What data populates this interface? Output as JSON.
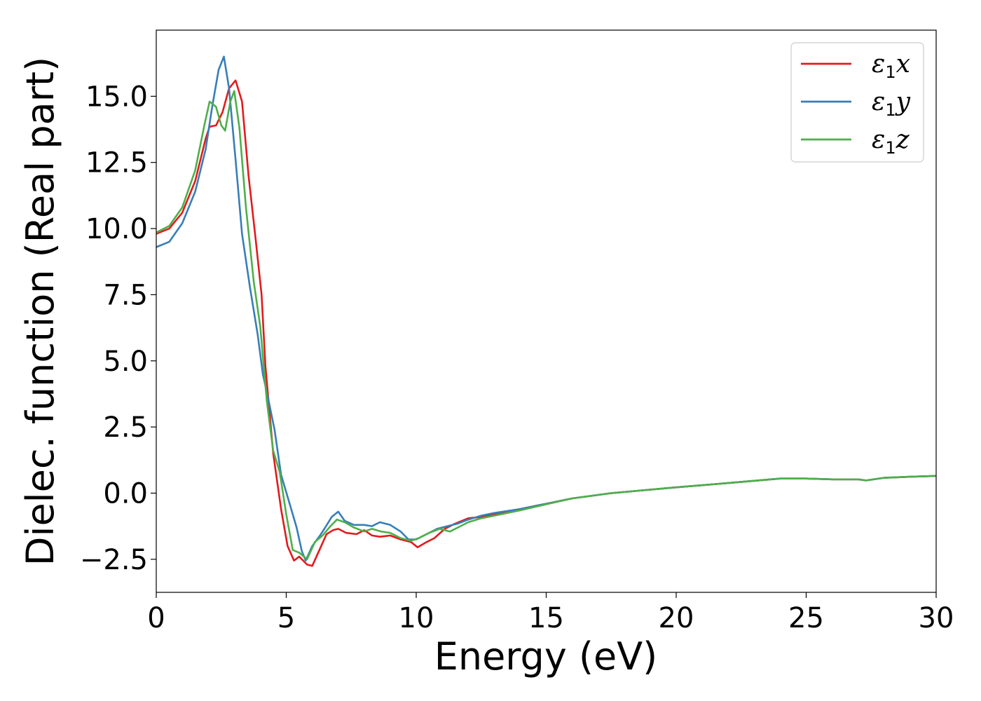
{
  "chart_data": {
    "type": "line",
    "title": "",
    "xlabel": "Energy (eV)",
    "ylabel": "Dielec. function (Real part)",
    "xlim": [
      0,
      30
    ],
    "ylim": [
      -3.75,
      17.5
    ],
    "xticks": [
      0,
      5,
      10,
      15,
      20,
      25,
      30
    ],
    "xtick_labels": [
      "0",
      "5",
      "10",
      "15",
      "20",
      "25",
      "30"
    ],
    "yticks": [
      -2.5,
      0.0,
      2.5,
      5.0,
      7.5,
      10.0,
      12.5,
      15.0
    ],
    "ytick_labels": [
      "−2.5",
      "0.0",
      "2.5",
      "5.0",
      "7.5",
      "10.0",
      "12.5",
      "15.0"
    ],
    "grid": false,
    "legend_position": "top-right",
    "series": [
      {
        "name": "x",
        "legend_symbol": "ε",
        "legend_subscript": "1",
        "color": "#e41a1c",
        "points": [
          [
            0,
            9.8
          ],
          [
            0.5,
            10.0
          ],
          [
            1.0,
            10.6
          ],
          [
            1.5,
            11.8
          ],
          [
            1.9,
            13.4
          ],
          [
            2.05,
            13.85
          ],
          [
            2.3,
            13.9
          ],
          [
            2.55,
            14.4
          ],
          [
            2.8,
            15.3
          ],
          [
            3.05,
            15.6
          ],
          [
            3.3,
            14.8
          ],
          [
            3.55,
            12.0
          ],
          [
            3.8,
            9.8
          ],
          [
            4.05,
            7.5
          ],
          [
            4.2,
            4.8
          ],
          [
            4.5,
            1.5
          ],
          [
            4.8,
            -0.6
          ],
          [
            5.05,
            -2.0
          ],
          [
            5.3,
            -2.55
          ],
          [
            5.5,
            -2.4
          ],
          [
            5.8,
            -2.7
          ],
          [
            6.0,
            -2.75
          ],
          [
            6.3,
            -2.1
          ],
          [
            6.55,
            -1.55
          ],
          [
            6.8,
            -1.4
          ],
          [
            7.0,
            -1.35
          ],
          [
            7.3,
            -1.5
          ],
          [
            7.7,
            -1.55
          ],
          [
            8.0,
            -1.4
          ],
          [
            8.3,
            -1.6
          ],
          [
            8.6,
            -1.65
          ],
          [
            9.0,
            -1.6
          ],
          [
            9.4,
            -1.75
          ],
          [
            9.8,
            -1.85
          ],
          [
            10.05,
            -2.05
          ],
          [
            10.4,
            -1.85
          ],
          [
            10.7,
            -1.7
          ],
          [
            11.1,
            -1.35
          ],
          [
            11.5,
            -1.15
          ],
          [
            12.0,
            -0.95
          ],
          [
            12.5,
            -0.9
          ],
          [
            13.0,
            -0.8
          ],
          [
            14.0,
            -0.6
          ],
          [
            15.0,
            -0.4
          ],
          [
            16.0,
            -0.2
          ],
          [
            17.5,
            0.0
          ],
          [
            20.0,
            0.22
          ],
          [
            22.0,
            0.38
          ],
          [
            24.0,
            0.55
          ],
          [
            25.0,
            0.55
          ],
          [
            26.0,
            0.52
          ],
          [
            27.0,
            0.52
          ],
          [
            27.3,
            0.48
          ],
          [
            28.0,
            0.58
          ],
          [
            29.0,
            0.62
          ],
          [
            30.0,
            0.65
          ]
        ]
      },
      {
        "name": "y",
        "legend_symbol": "ε",
        "legend_subscript": "1",
        "color": "#377eb8",
        "points": [
          [
            0,
            9.3
          ],
          [
            0.5,
            9.5
          ],
          [
            1.0,
            10.2
          ],
          [
            1.5,
            11.4
          ],
          [
            1.9,
            13.0
          ],
          [
            2.15,
            14.6
          ],
          [
            2.4,
            16.0
          ],
          [
            2.6,
            16.5
          ],
          [
            2.8,
            15.3
          ],
          [
            3.05,
            12.6
          ],
          [
            3.3,
            9.8
          ],
          [
            3.6,
            7.8
          ],
          [
            3.9,
            6.0
          ],
          [
            4.1,
            4.5
          ],
          [
            4.3,
            3.6
          ],
          [
            4.55,
            2.4
          ],
          [
            4.8,
            0.7
          ],
          [
            5.1,
            -0.3
          ],
          [
            5.4,
            -1.3
          ],
          [
            5.6,
            -2.2
          ],
          [
            5.75,
            -2.55
          ],
          [
            6.0,
            -2.0
          ],
          [
            6.3,
            -1.6
          ],
          [
            6.5,
            -1.3
          ],
          [
            6.75,
            -0.9
          ],
          [
            7.0,
            -0.7
          ],
          [
            7.25,
            -1.05
          ],
          [
            7.6,
            -1.2
          ],
          [
            8.0,
            -1.2
          ],
          [
            8.3,
            -1.25
          ],
          [
            8.6,
            -1.1
          ],
          [
            9.0,
            -1.2
          ],
          [
            9.4,
            -1.45
          ],
          [
            9.7,
            -1.75
          ],
          [
            10.0,
            -1.75
          ],
          [
            10.4,
            -1.55
          ],
          [
            10.8,
            -1.35
          ],
          [
            11.2,
            -1.25
          ],
          [
            11.6,
            -1.15
          ],
          [
            12.0,
            -1.0
          ],
          [
            12.5,
            -0.85
          ],
          [
            13.0,
            -0.75
          ],
          [
            14.0,
            -0.6
          ],
          [
            15.0,
            -0.4
          ],
          [
            16.0,
            -0.2
          ],
          [
            17.5,
            0.0
          ],
          [
            20.0,
            0.22
          ],
          [
            22.0,
            0.38
          ],
          [
            24.0,
            0.55
          ],
          [
            25.0,
            0.55
          ],
          [
            26.0,
            0.52
          ],
          [
            27.0,
            0.52
          ],
          [
            27.3,
            0.48
          ],
          [
            28.0,
            0.58
          ],
          [
            29.0,
            0.62
          ],
          [
            30.0,
            0.65
          ]
        ]
      },
      {
        "name": "z",
        "legend_symbol": "ε",
        "legend_subscript": "1",
        "color": "#4daf4a",
        "points": [
          [
            0,
            9.85
          ],
          [
            0.5,
            10.1
          ],
          [
            1.0,
            10.8
          ],
          [
            1.5,
            12.2
          ],
          [
            1.85,
            13.9
          ],
          [
            2.05,
            14.8
          ],
          [
            2.3,
            14.6
          ],
          [
            2.5,
            13.9
          ],
          [
            2.65,
            13.7
          ],
          [
            2.85,
            14.8
          ],
          [
            3.0,
            15.2
          ],
          [
            3.2,
            13.8
          ],
          [
            3.45,
            10.8
          ],
          [
            3.75,
            8.0
          ],
          [
            4.0,
            6.3
          ],
          [
            4.25,
            3.5
          ],
          [
            4.5,
            1.6
          ],
          [
            4.75,
            0.8
          ],
          [
            5.0,
            -0.8
          ],
          [
            5.25,
            -2.15
          ],
          [
            5.5,
            -2.25
          ],
          [
            5.8,
            -2.5
          ],
          [
            6.1,
            -1.85
          ],
          [
            6.4,
            -1.6
          ],
          [
            6.7,
            -1.25
          ],
          [
            6.95,
            -1.0
          ],
          [
            7.25,
            -1.1
          ],
          [
            7.6,
            -1.3
          ],
          [
            8.0,
            -1.45
          ],
          [
            8.3,
            -1.35
          ],
          [
            8.65,
            -1.45
          ],
          [
            9.0,
            -1.5
          ],
          [
            9.4,
            -1.7
          ],
          [
            9.8,
            -1.8
          ],
          [
            10.1,
            -1.7
          ],
          [
            10.5,
            -1.5
          ],
          [
            10.9,
            -1.35
          ],
          [
            11.3,
            -1.45
          ],
          [
            11.7,
            -1.25
          ],
          [
            12.0,
            -1.1
          ],
          [
            12.5,
            -0.95
          ],
          [
            13.0,
            -0.85
          ],
          [
            14.0,
            -0.65
          ],
          [
            15.0,
            -0.42
          ],
          [
            16.0,
            -0.2
          ],
          [
            17.5,
            0.0
          ],
          [
            20.0,
            0.22
          ],
          [
            22.0,
            0.38
          ],
          [
            24.0,
            0.55
          ],
          [
            25.0,
            0.55
          ],
          [
            26.0,
            0.52
          ],
          [
            27.0,
            0.52
          ],
          [
            27.3,
            0.48
          ],
          [
            28.0,
            0.58
          ],
          [
            29.0,
            0.62
          ],
          [
            30.0,
            0.65
          ]
        ]
      }
    ]
  }
}
